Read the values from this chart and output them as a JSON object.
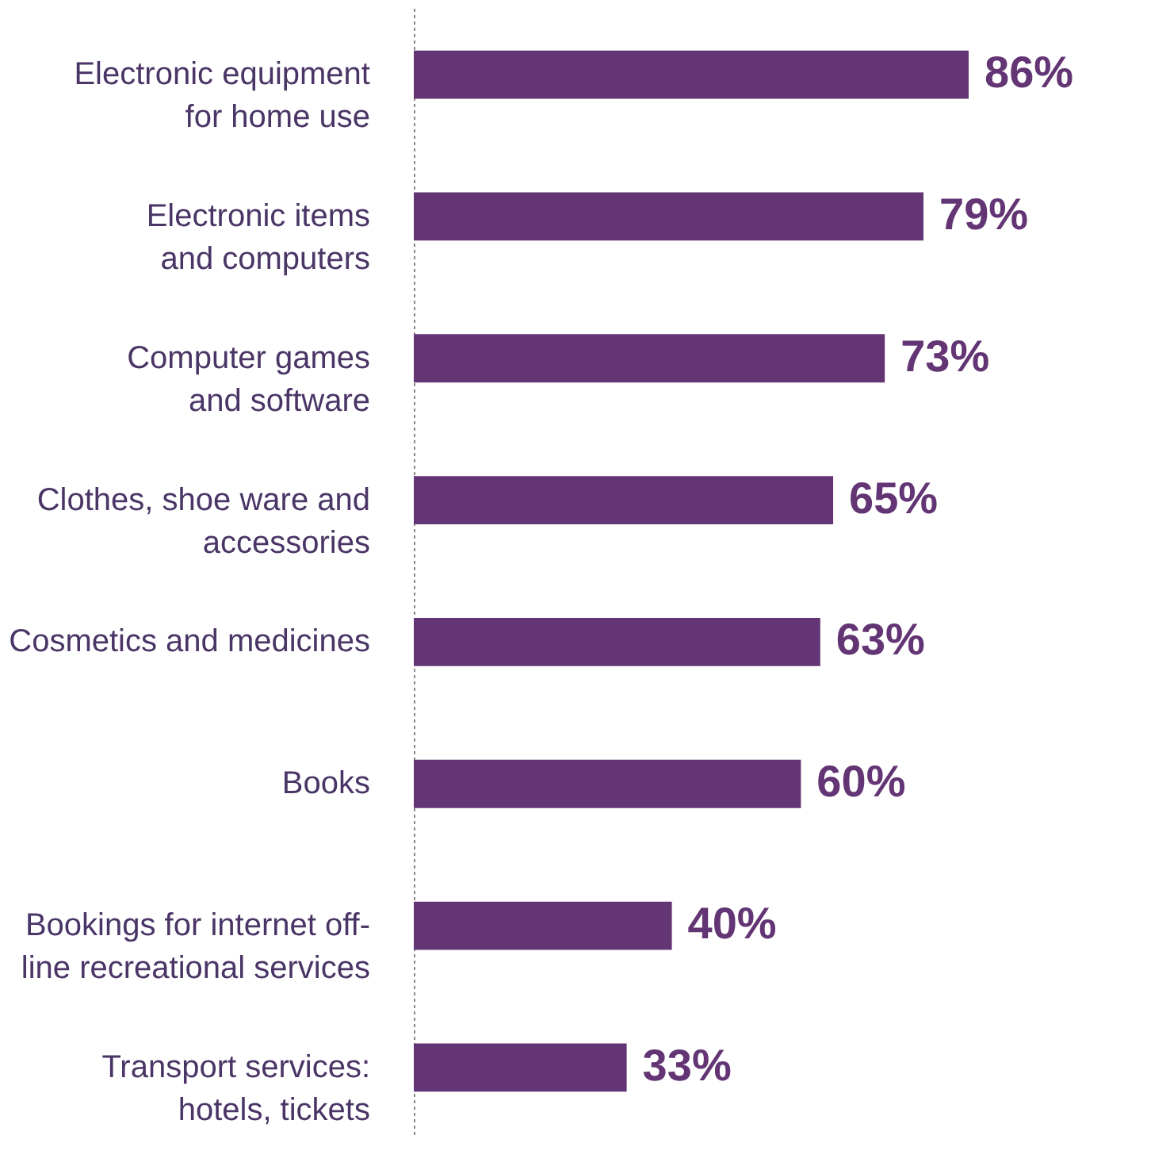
{
  "chart_data": {
    "type": "bar",
    "orientation": "horizontal",
    "categories": [
      "Electronic equipment\nfor home use",
      "Electronic items\nand computers",
      "Computer games\nand software",
      "Clothes, shoe ware and\naccessories",
      "Cosmetics and medicines",
      "Books",
      "Bookings for internet off-\nline recreational services",
      "Transport services:\nhotels, tickets"
    ],
    "values": [
      86,
      79,
      73,
      65,
      63,
      60,
      40,
      33
    ],
    "value_labels": [
      "86%",
      "79%",
      "73%",
      "65%",
      "63%",
      "60%",
      "40%",
      "33%"
    ],
    "color": "#633574",
    "tick_labels": "y"
  }
}
